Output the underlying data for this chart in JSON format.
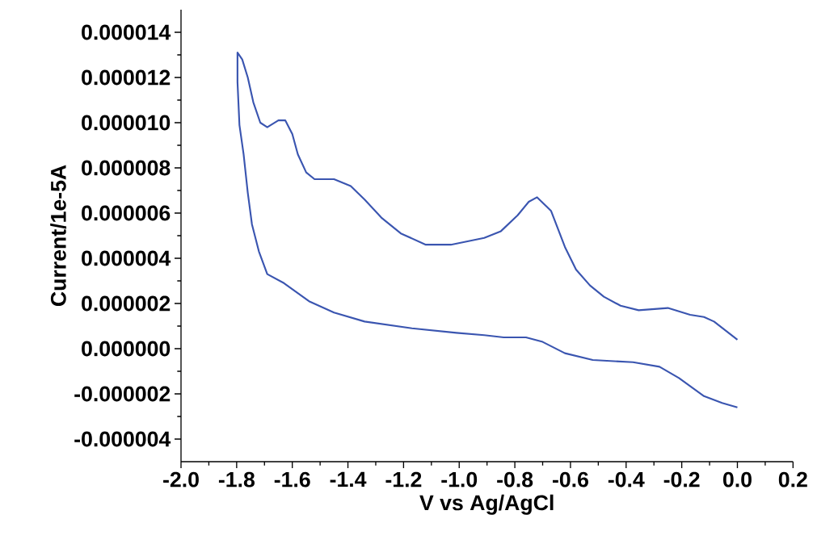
{
  "chart_data": {
    "type": "line",
    "xlabel": "V vs Ag/AgCl",
    "ylabel": "Current/1e-5A",
    "xlim": [
      -2.0,
      0.2
    ],
    "ylim": [
      -5e-06,
      1.5e-05
    ],
    "xticks": [
      {
        "value": -2.0,
        "label": "-2.0"
      },
      {
        "value": -1.8,
        "label": "-1.8"
      },
      {
        "value": -1.6,
        "label": "-1.6"
      },
      {
        "value": -1.4,
        "label": "-1.4"
      },
      {
        "value": -1.2,
        "label": "-1.2"
      },
      {
        "value": -1.0,
        "label": "-1.0"
      },
      {
        "value": -0.8,
        "label": "-0.8"
      },
      {
        "value": -0.6,
        "label": "-0.6"
      },
      {
        "value": -0.4,
        "label": "-0.4"
      },
      {
        "value": -0.2,
        "label": "-0.2"
      },
      {
        "value": 0.0,
        "label": "0.0"
      },
      {
        "value": 0.2,
        "label": "0.2"
      }
    ],
    "yticks": [
      {
        "value": -4e-06,
        "label": "-0.000004"
      },
      {
        "value": -2e-06,
        "label": "-0.000002"
      },
      {
        "value": 0.0,
        "label": "0.000000"
      },
      {
        "value": 2e-06,
        "label": "0.000002"
      },
      {
        "value": 4e-06,
        "label": "0.000004"
      },
      {
        "value": 6e-06,
        "label": "0.000006"
      },
      {
        "value": 8e-06,
        "label": "0.000008"
      },
      {
        "value": 1e-05,
        "label": "0.000010"
      },
      {
        "value": 1.2e-05,
        "label": "0.000012"
      },
      {
        "value": 1.4e-05,
        "label": "0.000014"
      }
    ],
    "grid": false,
    "marker": "none",
    "line_style": "solid",
    "series": [
      {
        "color": "#3a55b0",
        "x": [
          0.0,
          -0.084,
          -0.12,
          -0.17,
          -0.25,
          -0.355,
          -0.42,
          -0.48,
          -0.53,
          -0.58,
          -0.62,
          -0.67,
          -0.72,
          -0.75,
          -0.79,
          -0.85,
          -0.91,
          -1.03,
          -1.12,
          -1.21,
          -1.28,
          -1.34,
          -1.39,
          -1.45,
          -1.52,
          -1.55,
          -1.58,
          -1.6,
          -1.625,
          -1.65,
          -1.69,
          -1.715,
          -1.74,
          -1.76,
          -1.78,
          -1.797,
          -1.797,
          -1.79,
          -1.775,
          -1.76,
          -1.745,
          -1.72,
          -1.69,
          -1.63,
          -1.54,
          -1.45,
          -1.34,
          -1.17,
          -1.01,
          -0.91,
          -0.84,
          -0.76,
          -0.7,
          -0.62,
          -0.52,
          -0.375,
          -0.28,
          -0.21,
          -0.12,
          -0.055,
          0.0
        ],
        "values": [
          4e-07,
          1.2e-06,
          1.4e-06,
          1.5e-06,
          1.8e-06,
          1.7e-06,
          1.9e-06,
          2.3e-06,
          2.8e-06,
          3.5e-06,
          4.5e-06,
          6.1e-06,
          6.7e-06,
          6.5e-06,
          5.9e-06,
          5.2e-06,
          4.9e-06,
          4.6e-06,
          4.6e-06,
          5.1e-06,
          5.8e-06,
          6.6e-06,
          7.2e-06,
          7.5e-06,
          7.5e-06,
          7.8e-06,
          8.6e-06,
          9.5e-06,
          1.01e-05,
          1.01e-05,
          9.8e-06,
          1e-05,
          1.09e-05,
          1.2e-05,
          1.28e-05,
          1.31e-05,
          1.18e-05,
          9.9e-06,
          8.6e-06,
          6.9e-06,
          5.5e-06,
          4.3e-06,
          3.3e-06,
          2.9e-06,
          2.1e-06,
          1.6e-06,
          1.2e-06,
          9e-07,
          7e-07,
          6e-07,
          5e-07,
          5e-07,
          3e-07,
          -2e-07,
          -5e-07,
          -6e-07,
          -8e-07,
          -1.3e-06,
          -2.1e-06,
          -2.4e-06,
          -2.6e-06
        ]
      }
    ]
  }
}
